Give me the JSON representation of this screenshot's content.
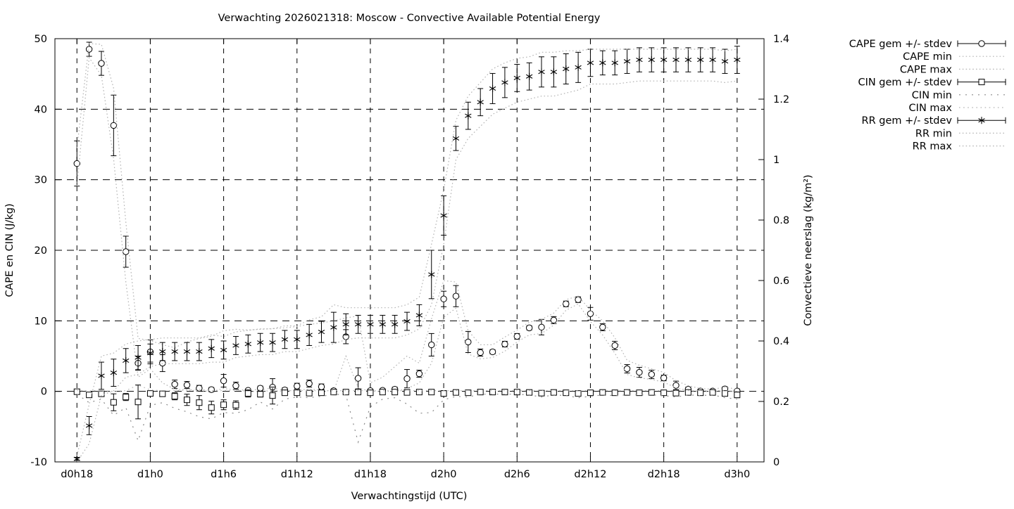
{
  "chart_data": {
    "type": "line",
    "title": "Verwachting 2026021318: Moscow - Convective Available Potential Energy",
    "xlabel": "Verwachtingstijd (UTC)",
    "ylabel": "CAPE en CIN (J/kg)",
    "y2label": "Convectieve neerslag (kg/m²)",
    "grid": true,
    "legend_position": "outside-top-right",
    "x_start_hour": 18,
    "x_step_hours": 1,
    "x_axis_range_hours": [
      16.2,
      74.2
    ],
    "x_ticks": [
      {
        "hour": 18,
        "label": "d0h18"
      },
      {
        "hour": 24,
        "label": "d1h0"
      },
      {
        "hour": 30,
        "label": "d1h6"
      },
      {
        "hour": 36,
        "label": "d1h12"
      },
      {
        "hour": 42,
        "label": "d1h18"
      },
      {
        "hour": 48,
        "label": "d2h0"
      },
      {
        "hour": 54,
        "label": "d2h6"
      },
      {
        "hour": 60,
        "label": "d2h12"
      },
      {
        "hour": 66,
        "label": "d2h18"
      },
      {
        "hour": 72,
        "label": "d3h0"
      }
    ],
    "y_left": {
      "min": -10,
      "max": 50,
      "tick_labels": [
        "-10",
        "0",
        "10",
        "20",
        "30",
        "40",
        "50"
      ],
      "tick_values": [
        -10,
        0,
        10,
        20,
        30,
        40,
        50
      ],
      "grid_values": [
        0,
        10,
        20,
        30,
        40
      ]
    },
    "y_right": {
      "min": 0,
      "max": 1.4,
      "tick_labels": [
        "0",
        "0.2",
        "0.4",
        "0.6",
        "0.8",
        "1",
        "1.2",
        "1.4"
      ],
      "tick_values": [
        0,
        0.2,
        0.4,
        0.6,
        0.8,
        1,
        1.2,
        1.4
      ]
    },
    "colors": {
      "series": "#000000",
      "envelope": "#b4b4b4",
      "envelope_dark": "#8a8a8a",
      "grid": "#000000",
      "background": "#ffffff"
    },
    "series": [
      {
        "name": "CAPE gem +/- stdev",
        "axis": "left",
        "style": "errorbar",
        "marker": "circle",
        "values": [
          32.3,
          48.5,
          46.5,
          37.7,
          19.8,
          4.0,
          5.6,
          4.0,
          1.0,
          0.9,
          0.45,
          0.25,
          1.5,
          0.8,
          0.15,
          0.45,
          0.6,
          0.2,
          0.75,
          1.1,
          0.65,
          0.1,
          7.75,
          1.85,
          0.1,
          0.15,
          0.3,
          1.8,
          2.5,
          6.6,
          13.1,
          13.5,
          7.0,
          5.5,
          5.6,
          6.7,
          7.8,
          9.0,
          9.1,
          10.1,
          12.4,
          13.0,
          11.0,
          9.1,
          6.5,
          3.2,
          2.7,
          2.4,
          1.9,
          0.85,
          0.3,
          0.05,
          0.05,
          0.35,
          0.05
        ],
        "stdev": [
          3.2,
          1.0,
          1.7,
          4.3,
          2.2,
          1.0,
          1.7,
          1.2,
          0.6,
          0.5,
          0.4,
          0.3,
          0.9,
          0.5,
          0.2,
          0.3,
          1.2,
          0.3,
          0.4,
          0.5,
          0.4,
          0.2,
          1.0,
          1.5,
          0.2,
          0.2,
          0.3,
          1.3,
          0.5,
          1.6,
          1.1,
          1.5,
          1.5,
          0.5,
          0.3,
          0.4,
          0.4,
          0.3,
          1.1,
          0.5,
          0.4,
          0.4,
          0.9,
          0.5,
          0.6,
          0.6,
          0.7,
          0.6,
          0.4,
          0.6,
          0.3,
          0.2,
          0.2,
          0.3,
          0.3
        ]
      },
      {
        "name": "CAPE min",
        "axis": "left",
        "style": "dotted",
        "values": [
          29.1,
          47.3,
          44.8,
          33.0,
          15.5,
          2.0,
          3.2,
          1.2,
          0.3,
          0.2,
          0.1,
          0.0,
          0.4,
          0.2,
          0.0,
          0.0,
          0.1,
          0.0,
          0.2,
          0.3,
          0.2,
          0.0,
          5.0,
          0.5,
          0.0,
          0.0,
          0.0,
          0.4,
          1.2,
          4.0,
          10.5,
          11.8,
          5.3,
          4.6,
          4.8,
          5.7,
          7.0,
          8.0,
          8.2,
          9.4,
          11.5,
          12.4,
          9.9,
          8.0,
          5.4,
          2.4,
          1.9,
          1.7,
          1.3,
          0.5,
          0.1,
          0.0,
          0.0,
          0.1,
          0.0
        ]
      },
      {
        "name": "CAPE max",
        "axis": "left",
        "style": "dotted",
        "values": [
          34.5,
          49.3,
          49.2,
          43.0,
          24.0,
          7.5,
          7.2,
          6.6,
          6.2,
          7.0,
          7.5,
          7.8,
          8.6,
          8.8,
          8.7,
          8.8,
          8.9,
          9.0,
          9.2,
          9.5,
          9.7,
          10.0,
          10.4,
          10.7,
          1.2,
          2.0,
          3.5,
          5.0,
          4.0,
          10.3,
          15.7,
          15.5,
          8.6,
          6.6,
          6.6,
          7.7,
          8.7,
          9.8,
          10.2,
          11.1,
          13.0,
          13.5,
          11.5,
          10.0,
          7.6,
          4.4,
          3.7,
          3.2,
          2.7,
          1.5,
          0.8,
          0.4,
          0.3,
          0.6,
          0.3
        ]
      },
      {
        "name": "CIN gem +/- stdev",
        "axis": "left",
        "style": "errorbar",
        "marker": "square",
        "values": [
          -0.05,
          -0.5,
          -0.35,
          -1.55,
          -0.8,
          -1.5,
          -0.3,
          -0.35,
          -0.7,
          -1.2,
          -1.6,
          -2.3,
          -1.9,
          -1.95,
          -0.3,
          -0.4,
          -0.6,
          -0.2,
          -0.2,
          -0.25,
          -0.2,
          -0.1,
          -0.1,
          -0.1,
          -0.2,
          -0.1,
          -0.1,
          -0.15,
          -0.1,
          -0.1,
          -0.3,
          -0.15,
          -0.2,
          -0.1,
          -0.1,
          -0.1,
          -0.1,
          -0.15,
          -0.25,
          -0.15,
          -0.2,
          -0.3,
          -0.2,
          -0.15,
          -0.2,
          -0.15,
          -0.2,
          -0.15,
          -0.2,
          -0.25,
          -0.15,
          -0.2,
          -0.15,
          -0.3,
          -0.5
        ],
        "stdev": [
          0.1,
          0.3,
          0.2,
          1.2,
          0.5,
          2.4,
          0.3,
          0.3,
          0.5,
          0.8,
          1.0,
          0.9,
          0.7,
          0.6,
          0.5,
          0.4,
          1.2,
          0.3,
          0.2,
          0.3,
          0.2,
          0.1,
          0.1,
          0.1,
          0.2,
          0.1,
          0.1,
          0.2,
          0.1,
          0.1,
          0.4,
          0.2,
          0.2,
          0.1,
          0.1,
          0.1,
          0.1,
          0.1,
          0.3,
          0.2,
          0.2,
          0.3,
          0.3,
          0.2,
          0.2,
          0.2,
          0.2,
          0.2,
          0.3,
          0.3,
          0.2,
          0.2,
          0.2,
          0.3,
          0.4
        ]
      },
      {
        "name": "CIN min",
        "axis": "left",
        "style": "dotted-sparse",
        "values": [
          -0.4,
          -1.6,
          -1.1,
          -3.4,
          -2.3,
          -7.0,
          -2.0,
          -1.6,
          -2.4,
          -2.9,
          -3.6,
          -3.9,
          -3.0,
          -3.1,
          -2.6,
          -1.5,
          -2.5,
          -1.1,
          -0.8,
          -0.9,
          -0.7,
          -0.4,
          -0.5,
          -7.2,
          -2.2,
          -1.1,
          -0.9,
          -1.8,
          -3.1,
          -3.0,
          -1.2,
          -0.7,
          -0.8,
          -0.4,
          -0.4,
          -0.4,
          -0.4,
          -0.5,
          -0.8,
          -0.5,
          -0.6,
          -0.9,
          -0.7,
          -0.5,
          -0.6,
          -0.5,
          -0.5,
          -0.5,
          -0.6,
          -0.8,
          -0.5,
          -0.6,
          -0.5,
          -0.9,
          -1.1
        ]
      },
      {
        "name": "CIN max",
        "axis": "left",
        "style": "dotted-med",
        "values": [
          0.1,
          0.1,
          0.1,
          0.0,
          0.1,
          0.9,
          0.2,
          0.1,
          0.1,
          0.2,
          0.3,
          0.1,
          0.1,
          0.1,
          0.3,
          0.2,
          0.5,
          0.1,
          0.1,
          0.1,
          0.1,
          0.1,
          0.1,
          0.1,
          0.1,
          0.1,
          0.1,
          0.1,
          0.1,
          0.1,
          0.1,
          0.1,
          0.1,
          0.1,
          0.1,
          0.1,
          0.1,
          0.1,
          0.1,
          0.1,
          0.1,
          0.1,
          0.1,
          0.1,
          0.1,
          0.1,
          0.1,
          0.1,
          0.1,
          0.1,
          0.1,
          0.1,
          0.1,
          0.1,
          0.0
        ]
      },
      {
        "name": "RR gem +/- stdev",
        "axis": "right",
        "style": "errorbar",
        "marker": "asterisk",
        "values": [
          0.01,
          0.12,
          0.285,
          0.295,
          0.335,
          0.345,
          0.36,
          0.365,
          0.365,
          0.365,
          0.365,
          0.375,
          0.37,
          0.385,
          0.39,
          0.395,
          0.395,
          0.405,
          0.405,
          0.42,
          0.43,
          0.445,
          0.455,
          0.455,
          0.455,
          0.455,
          0.455,
          0.465,
          0.485,
          0.62,
          0.815,
          1.07,
          1.145,
          1.19,
          1.235,
          1.255,
          1.27,
          1.275,
          1.29,
          1.29,
          1.3,
          1.305,
          1.32,
          1.32,
          1.32,
          1.325,
          1.33,
          1.33,
          1.33,
          1.33,
          1.33,
          1.33,
          1.33,
          1.325,
          1.33
        ],
        "stdev": [
          0.005,
          0.03,
          0.045,
          0.045,
          0.04,
          0.04,
          0.03,
          0.03,
          0.03,
          0.03,
          0.03,
          0.03,
          0.03,
          0.03,
          0.03,
          0.03,
          0.03,
          0.03,
          0.03,
          0.035,
          0.035,
          0.05,
          0.035,
          0.03,
          0.03,
          0.03,
          0.03,
          0.03,
          0.035,
          0.08,
          0.065,
          0.04,
          0.045,
          0.045,
          0.05,
          0.05,
          0.045,
          0.045,
          0.05,
          0.05,
          0.05,
          0.05,
          0.045,
          0.04,
          0.04,
          0.04,
          0.04,
          0.04,
          0.04,
          0.04,
          0.04,
          0.04,
          0.04,
          0.04,
          0.045
        ]
      },
      {
        "name": "RR min",
        "axis": "right",
        "style": "dotted",
        "values": [
          0.0,
          0.06,
          0.22,
          0.235,
          0.28,
          0.29,
          0.315,
          0.325,
          0.325,
          0.325,
          0.325,
          0.33,
          0.33,
          0.345,
          0.35,
          0.355,
          0.355,
          0.365,
          0.365,
          0.375,
          0.385,
          0.39,
          0.405,
          0.41,
          0.41,
          0.41,
          0.41,
          0.42,
          0.44,
          0.52,
          0.72,
          1.0,
          1.07,
          1.11,
          1.15,
          1.17,
          1.19,
          1.2,
          1.21,
          1.21,
          1.22,
          1.23,
          1.25,
          1.25,
          1.25,
          1.255,
          1.26,
          1.26,
          1.26,
          1.26,
          1.26,
          1.26,
          1.26,
          1.255,
          1.26
        ]
      },
      {
        "name": "RR max",
        "axis": "right",
        "style": "dotted",
        "values": [
          0.02,
          0.19,
          0.35,
          0.36,
          0.39,
          0.4,
          0.405,
          0.41,
          0.41,
          0.41,
          0.41,
          0.42,
          0.415,
          0.43,
          0.435,
          0.44,
          0.44,
          0.45,
          0.45,
          0.47,
          0.48,
          0.52,
          0.51,
          0.51,
          0.51,
          0.51,
          0.51,
          0.52,
          0.545,
          0.72,
          0.9,
          1.13,
          1.21,
          1.255,
          1.3,
          1.32,
          1.335,
          1.34,
          1.355,
          1.355,
          1.36,
          1.36,
          1.365,
          1.365,
          1.365,
          1.365,
          1.365,
          1.365,
          1.365,
          1.365,
          1.365,
          1.365,
          1.365,
          1.36,
          1.365
        ]
      }
    ]
  }
}
